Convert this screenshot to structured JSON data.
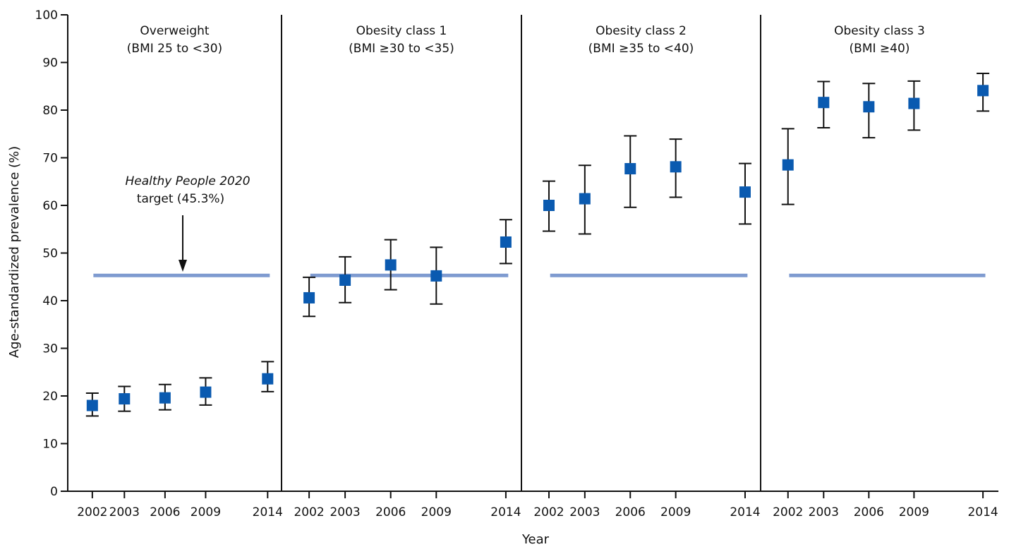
{
  "chart_data": {
    "type": "scatter",
    "ylabel": "Age-standardized prevalence (%)",
    "xlabel": "Year",
    "ylim": [
      0,
      100
    ],
    "yticks": [
      0,
      10,
      20,
      30,
      40,
      50,
      60,
      70,
      80,
      90,
      100
    ],
    "x_tick_years": [
      2002,
      2003,
      2006,
      2009,
      2014
    ],
    "target": {
      "value": 45.3,
      "label_italic": "Healthy People 2020",
      "label_rest": "target (45.3%)",
      "color": "#7f9bd0"
    },
    "marker_color": "#0a5ab0",
    "panels": [
      {
        "name": "Overweight",
        "subtitle": "(BMI 25 to <30)",
        "points": [
          {
            "year": 2002,
            "value": 18.0,
            "low": 15.8,
            "high": 20.6
          },
          {
            "year": 2003,
            "value": 19.4,
            "low": 16.8,
            "high": 22.0
          },
          {
            "year": 2006,
            "value": 19.6,
            "low": 17.1,
            "high": 22.4
          },
          {
            "year": 2009,
            "value": 20.8,
            "low": 18.1,
            "high": 23.8
          },
          {
            "year": 2014,
            "value": 23.6,
            "low": 20.9,
            "high": 27.2
          }
        ]
      },
      {
        "name": "Obesity class 1",
        "subtitle": "(BMI ≥30 to <35)",
        "points": [
          {
            "year": 2002,
            "value": 40.6,
            "low": 36.7,
            "high": 44.9
          },
          {
            "year": 2003,
            "value": 44.3,
            "low": 39.6,
            "high": 49.2
          },
          {
            "year": 2006,
            "value": 47.5,
            "low": 42.3,
            "high": 52.8
          },
          {
            "year": 2009,
            "value": 45.2,
            "low": 39.3,
            "high": 51.2
          },
          {
            "year": 2014,
            "value": 52.3,
            "low": 47.8,
            "high": 57.0
          }
        ]
      },
      {
        "name": "Obesity class 2",
        "subtitle": "(BMI ≥35 to <40)",
        "points": [
          {
            "year": 2002,
            "value": 60.0,
            "low": 54.6,
            "high": 65.1
          },
          {
            "year": 2003,
            "value": 61.4,
            "low": 54.0,
            "high": 68.4
          },
          {
            "year": 2006,
            "value": 67.7,
            "low": 59.6,
            "high": 74.6
          },
          {
            "year": 2009,
            "value": 68.1,
            "low": 61.7,
            "high": 73.9
          },
          {
            "year": 2014,
            "value": 62.8,
            "low": 56.1,
            "high": 68.8
          }
        ]
      },
      {
        "name": "Obesity class 3",
        "subtitle": "(BMI ≥40)",
        "points": [
          {
            "year": 2002,
            "value": 68.5,
            "low": 60.2,
            "high": 76.1
          },
          {
            "year": 2003,
            "value": 81.6,
            "low": 76.3,
            "high": 86.0
          },
          {
            "year": 2006,
            "value": 80.7,
            "low": 74.2,
            "high": 85.6
          },
          {
            "year": 2009,
            "value": 81.4,
            "low": 75.8,
            "high": 86.1
          },
          {
            "year": 2014,
            "value": 84.1,
            "low": 79.8,
            "high": 87.7
          }
        ]
      }
    ]
  }
}
